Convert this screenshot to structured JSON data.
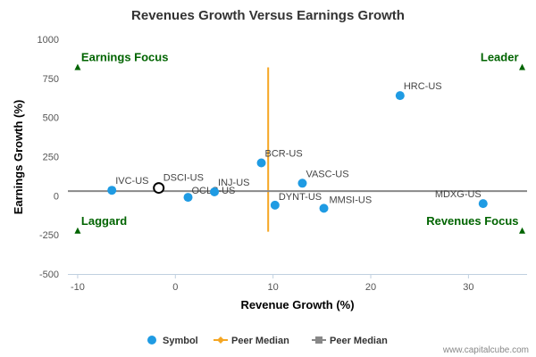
{
  "chart_data": {
    "type": "scatter",
    "title": "Revenues Growth Versus Earnings Growth",
    "xlabel": "Revenue Growth (%)",
    "ylabel": "Earnings Growth (%)",
    "xlim": [
      -11,
      36
    ],
    "ylim": [
      -500,
      1000
    ],
    "x_ticks": [
      -10,
      0,
      10,
      20,
      30
    ],
    "y_ticks": [
      -500,
      -250,
      0,
      250,
      500,
      750,
      1000
    ],
    "grid": false,
    "legend_position": "bottom",
    "series": [
      {
        "name": "Symbol",
        "color": "#1f9be3",
        "points": [
          {
            "label": "IVC-US",
            "x": -6.5,
            "y": 35
          },
          {
            "label": "OCLS-US",
            "x": 1.3,
            "y": -10
          },
          {
            "label": "INJ-US",
            "x": 4.0,
            "y": 25
          },
          {
            "label": "BCR-US",
            "x": 8.8,
            "y": 210
          },
          {
            "label": "DYNT-US",
            "x": 10.2,
            "y": -60
          },
          {
            "label": "VASC-US",
            "x": 13.0,
            "y": 80
          },
          {
            "label": "MMSI-US",
            "x": 15.2,
            "y": -80
          },
          {
            "label": "HRC-US",
            "x": 23.0,
            "y": 640
          },
          {
            "label": "MDXG-US",
            "x": 31.5,
            "y": -50
          }
        ]
      }
    ],
    "highlight_point": {
      "label": "DSCI-US",
      "x": -1.7,
      "y": 50,
      "color": "#000000"
    },
    "peer_median_lines": [
      {
        "name": "Peer Median",
        "orientation": "vertical",
        "value": 9.5,
        "range": [
          -230,
          820
        ],
        "color": "#f5a623"
      },
      {
        "name": "Peer Median",
        "orientation": "horizontal",
        "value": 30,
        "range": [
          -11,
          36
        ],
        "color": "#888888"
      }
    ],
    "quadrant_labels": [
      {
        "text": "Earnings Focus",
        "corner": "top-left",
        "x": -10,
        "y": 820
      },
      {
        "text": "Leader",
        "corner": "top-right",
        "x": 35.5,
        "y": 820
      },
      {
        "text": "Laggard",
        "corner": "bottom-left",
        "x": -10,
        "y": -225
      },
      {
        "text": "Revenues Focus",
        "corner": "bottom-right",
        "x": 35.5,
        "y": -225
      }
    ],
    "quadrant_marker_color": "#006400",
    "legend": [
      {
        "label": "Symbol",
        "marker": "circle",
        "color": "#1f9be3"
      },
      {
        "label": "Peer Median",
        "marker": "diamond-line",
        "color": "#f5a623"
      },
      {
        "label": "Peer Median",
        "marker": "square-line",
        "color": "#888888"
      }
    ]
  },
  "credit": "www.capitalcube.com"
}
